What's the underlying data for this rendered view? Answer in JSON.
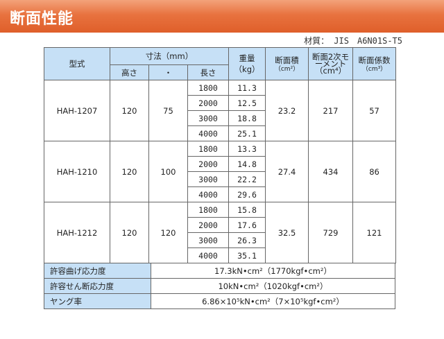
{
  "header": {
    "title": "断面性能"
  },
  "material": "材質： JIS　A6N01S-T5",
  "headers": {
    "model": "型式",
    "dims": "寸法（mm）",
    "height": "高さ",
    "dot": "・",
    "length": "長さ",
    "weight": "重量",
    "weight_unit": "（kg）",
    "area": "断面積",
    "area_unit": "（cm²）",
    "moment": "断面2次モーメント",
    "moment_unit": "（cm⁴）",
    "modulus": "断面係数",
    "modulus_unit": "（cm³）"
  },
  "rows": [
    {
      "model": "HAH-1207",
      "height": "120",
      "width": "75",
      "area": "23.2",
      "moment": "217",
      "modulus": "57",
      "lengths": [
        "1800",
        "2000",
        "3000",
        "4000"
      ],
      "weights": [
        "11.3",
        "12.5",
        "18.8",
        "25.1"
      ]
    },
    {
      "model": "HAH-1210",
      "height": "120",
      "width": "100",
      "area": "27.4",
      "moment": "434",
      "modulus": "86",
      "lengths": [
        "1800",
        "2000",
        "3000",
        "4000"
      ],
      "weights": [
        "13.3",
        "14.8",
        "22.2",
        "29.6"
      ]
    },
    {
      "model": "HAH-1212",
      "height": "120",
      "width": "120",
      "area": "32.5",
      "moment": "729",
      "modulus": "121",
      "lengths": [
        "1800",
        "2000",
        "3000",
        "4000"
      ],
      "weights": [
        "15.8",
        "17.6",
        "26.3",
        "35.1"
      ]
    }
  ],
  "stress": [
    {
      "label": "許容曲げ応力度",
      "value": "17.3kN•cm²（1770kgf•cm²）"
    },
    {
      "label": "許容せん断応力度",
      "value": "10kN•cm²（1020kgf•cm²）"
    },
    {
      "label": "ヤング率",
      "value": "6.86×10⁵kN•cm²（7×10⁵kgf•cm²）"
    }
  ]
}
